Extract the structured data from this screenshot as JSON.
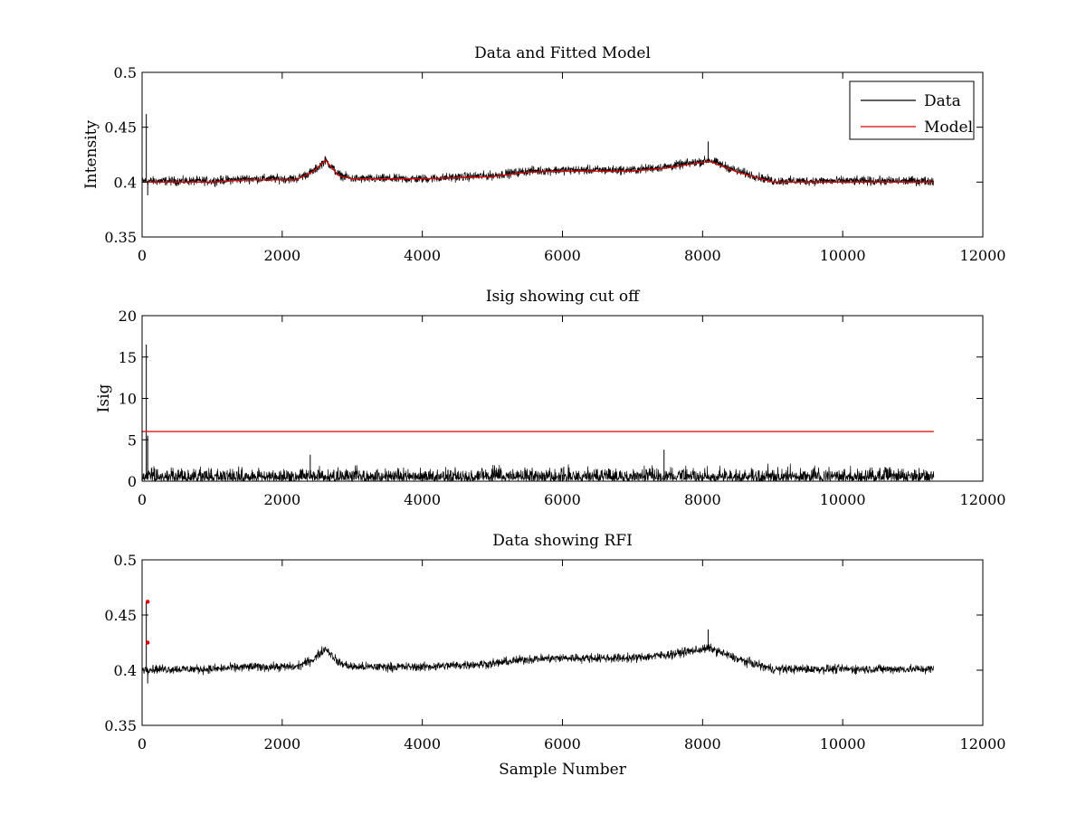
{
  "chart_data": [
    {
      "type": "line",
      "title": "Data and Fitted Model",
      "xlabel": "",
      "ylabel": "Intensity",
      "xlim": [
        0,
        12000
      ],
      "ylim": [
        0.35,
        0.5
      ],
      "xticks": [
        "0",
        "2000",
        "4000",
        "6000",
        "8000",
        "10000",
        "12000"
      ],
      "yticks": [
        "0.35",
        "0.4",
        "0.45",
        "0.5"
      ],
      "grid": false,
      "legend": {
        "placement": "top-right",
        "entries": [
          "Data",
          "Model"
        ]
      },
      "series": [
        {
          "name": "Data",
          "color": "#000000",
          "kind": "noisy-signal",
          "noise_amplitude": 0.006,
          "x_range": [
            0,
            11300
          ],
          "baseline": [
            [
              0,
              0.401
            ],
            [
              1000,
              0.401
            ],
            [
              1500,
              0.403
            ],
            [
              2200,
              0.403
            ],
            [
              2450,
              0.41
            ],
            [
              2620,
              0.42
            ],
            [
              2800,
              0.407
            ],
            [
              3000,
              0.403
            ],
            [
              4000,
              0.403
            ],
            [
              5000,
              0.406
            ],
            [
              5500,
              0.41
            ],
            [
              6000,
              0.411
            ],
            [
              6500,
              0.411
            ],
            [
              7000,
              0.411
            ],
            [
              7500,
              0.414
            ],
            [
              8000,
              0.419
            ],
            [
              8100,
              0.42
            ],
            [
              8500,
              0.41
            ],
            [
              9000,
              0.401
            ],
            [
              9500,
              0.401
            ],
            [
              10000,
              0.401
            ],
            [
              11300,
              0.401
            ]
          ],
          "spikes": [
            [
              60,
              0.462
            ],
            [
              80,
              0.388
            ],
            [
              8080,
              0.437
            ]
          ]
        },
        {
          "name": "Model",
          "color": "#dd0000",
          "kind": "line",
          "points": [
            [
              0,
              0.4
            ],
            [
              1000,
              0.4
            ],
            [
              1500,
              0.402
            ],
            [
              2200,
              0.402
            ],
            [
              2450,
              0.41
            ],
            [
              2620,
              0.42
            ],
            [
              2800,
              0.406
            ],
            [
              3000,
              0.403
            ],
            [
              4000,
              0.403
            ],
            [
              5000,
              0.405
            ],
            [
              5500,
              0.409
            ],
            [
              6000,
              0.41
            ],
            [
              6500,
              0.41
            ],
            [
              7000,
              0.41
            ],
            [
              7500,
              0.413
            ],
            [
              8000,
              0.418
            ],
            [
              8100,
              0.419
            ],
            [
              8500,
              0.409
            ],
            [
              9000,
              0.4
            ],
            [
              9500,
              0.4
            ],
            [
              10000,
              0.4
            ],
            [
              11300,
              0.4
            ]
          ]
        }
      ]
    },
    {
      "type": "line",
      "title": "Isig showing cut off",
      "xlabel": "",
      "ylabel": "Isig",
      "xlim": [
        0,
        12000
      ],
      "ylim": [
        0,
        20
      ],
      "xticks": [
        "0",
        "2000",
        "4000",
        "6000",
        "8000",
        "10000",
        "12000"
      ],
      "yticks": [
        "0",
        "5",
        "10",
        "15",
        "20"
      ],
      "grid": false,
      "series": [
        {
          "name": "Isig",
          "color": "#000000",
          "kind": "abs-noise",
          "noise_amplitude": 2.0,
          "x_range": [
            0,
            11300
          ],
          "spikes": [
            [
              60,
              16.5
            ],
            [
              80,
              5.5
            ],
            [
              2400,
              3.2
            ],
            [
              7450,
              3.8
            ]
          ]
        },
        {
          "name": "Cut off",
          "color": "#dd0000",
          "kind": "line",
          "points": [
            [
              0,
              6
            ],
            [
              11300,
              6
            ]
          ]
        }
      ]
    },
    {
      "type": "line",
      "title": "Data showing RFI",
      "xlabel": "Sample Number",
      "ylabel": "",
      "xlim": [
        0,
        12000
      ],
      "ylim": [
        0.35,
        0.5
      ],
      "xticks": [
        "0",
        "2000",
        "4000",
        "6000",
        "8000",
        "10000",
        "12000"
      ],
      "yticks": [
        "0.35",
        "0.4",
        "0.45",
        "0.5"
      ],
      "grid": false,
      "series": [
        {
          "name": "Data",
          "color": "#000000",
          "kind": "noisy-signal",
          "noise_amplitude": 0.006,
          "x_range": [
            0,
            11300
          ],
          "baseline": [
            [
              0,
              0.401
            ],
            [
              1000,
              0.401
            ],
            [
              1500,
              0.403
            ],
            [
              2200,
              0.403
            ],
            [
              2450,
              0.41
            ],
            [
              2620,
              0.42
            ],
            [
              2800,
              0.407
            ],
            [
              3000,
              0.403
            ],
            [
              4000,
              0.403
            ],
            [
              5000,
              0.406
            ],
            [
              5500,
              0.41
            ],
            [
              6000,
              0.411
            ],
            [
              6500,
              0.411
            ],
            [
              7000,
              0.411
            ],
            [
              7500,
              0.414
            ],
            [
              8000,
              0.419
            ],
            [
              8100,
              0.42
            ],
            [
              8500,
              0.41
            ],
            [
              9000,
              0.401
            ],
            [
              9500,
              0.401
            ],
            [
              10000,
              0.401
            ],
            [
              11300,
              0.401
            ]
          ],
          "spikes": [
            [
              60,
              0.462
            ],
            [
              80,
              0.388
            ],
            [
              8080,
              0.437
            ]
          ]
        },
        {
          "name": "RFI",
          "color": "#dd0000",
          "kind": "markers",
          "points": [
            [
              80,
              0.462
            ],
            [
              80,
              0.425
            ]
          ]
        }
      ]
    }
  ]
}
